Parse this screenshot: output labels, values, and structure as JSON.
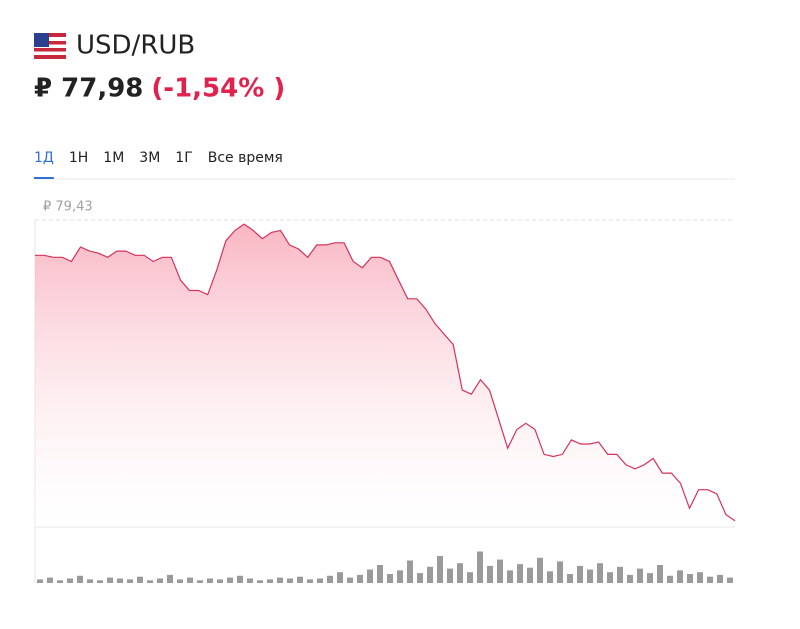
{
  "header": {
    "pair": "USD/RUB",
    "price": "₽ 77,98",
    "change": "(-1,54% )"
  },
  "tabs": {
    "items": [
      "1Д",
      "1Н",
      "1М",
      "3М",
      "1Г",
      "Все время"
    ],
    "active": 0
  },
  "chart_data": {
    "type": "line",
    "color": "#d6325a",
    "values": [
      79.26,
      79.26,
      79.25,
      79.25,
      79.23,
      79.3,
      79.28,
      79.27,
      79.25,
      79.28,
      79.28,
      79.26,
      79.26,
      79.23,
      79.25,
      79.25,
      79.14,
      79.09,
      79.09,
      79.07,
      79.19,
      79.33,
      79.38,
      79.41,
      79.38,
      79.34,
      79.37,
      79.38,
      79.31,
      79.29,
      79.25,
      79.31,
      79.31,
      79.32,
      79.32,
      79.23,
      79.2,
      79.25,
      79.25,
      79.23,
      79.14,
      79.05,
      79.05,
      79.0,
      78.93,
      78.88,
      78.83,
      78.61,
      78.59,
      78.66,
      78.61,
      78.47,
      78.33,
      78.42,
      78.45,
      78.42,
      78.3,
      78.29,
      78.3,
      78.37,
      78.35,
      78.35,
      78.36,
      78.3,
      78.3,
      78.25,
      78.23,
      78.25,
      78.28,
      78.21,
      78.21,
      78.16,
      78.04,
      78.13,
      78.13,
      78.11,
      78.01,
      77.98
    ],
    "ylim": [
      77.95,
      79.43
    ],
    "yticks": [
      {
        "value": 79.43,
        "label": "₽ 79,43"
      }
    ],
    "volume": {
      "color": "#9a9a9a",
      "ylim": [
        0,
        50
      ],
      "values": [
        4,
        6,
        3,
        5,
        8,
        4,
        3,
        6,
        5,
        4,
        7,
        3,
        5,
        9,
        4,
        6,
        3,
        5,
        4,
        6,
        8,
        5,
        3,
        4,
        6,
        5,
        7,
        4,
        5,
        8,
        12,
        6,
        9,
        15,
        20,
        10,
        14,
        25,
        11,
        18,
        30,
        16,
        22,
        12,
        35,
        19,
        26,
        14,
        21,
        17,
        28,
        13,
        24,
        10,
        19,
        15,
        22,
        12,
        18,
        9,
        16,
        11,
        20,
        8,
        14,
        10,
        12,
        7,
        9,
        6
      ]
    }
  }
}
